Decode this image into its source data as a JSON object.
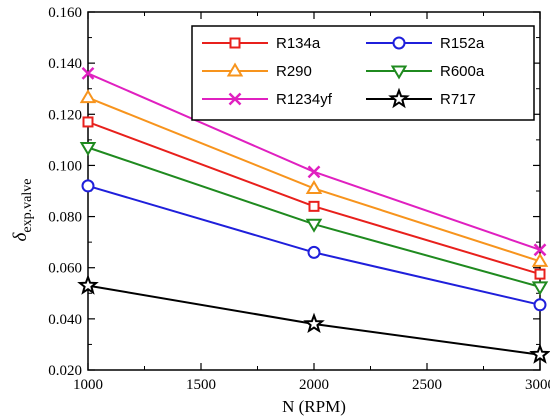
{
  "chart_data": {
    "type": "line",
    "title": "",
    "xlabel": "N (RPM)",
    "ylabel_main": "δ",
    "ylabel_sub": "exp.valve",
    "x": [
      1000,
      2000,
      3000
    ],
    "xlim": [
      1000,
      3000
    ],
    "ylim": [
      0.02,
      0.16
    ],
    "xticks": [
      "1000",
      "1500",
      "2000",
      "2500",
      "3000"
    ],
    "yticks": [
      "0.020",
      "0.040",
      "0.060",
      "0.080",
      "0.100",
      "0.120",
      "0.140",
      "0.160"
    ],
    "grid": false,
    "legend_position": "top-right",
    "series": [
      {
        "name": "R134a",
        "color": "#e8201c",
        "marker": "square",
        "values": [
          0.117,
          0.084,
          0.0575
        ]
      },
      {
        "name": "R152a",
        "color": "#1f1fdb",
        "marker": "circle",
        "values": [
          0.092,
          0.066,
          0.0455
        ]
      },
      {
        "name": "R290",
        "color": "#f7941d",
        "marker": "triangle-up",
        "values": [
          0.1265,
          0.091,
          0.0625
        ]
      },
      {
        "name": "R600a",
        "color": "#1f8a1f",
        "marker": "triangle-down",
        "values": [
          0.107,
          0.077,
          0.0525
        ]
      },
      {
        "name": "R1234yf",
        "color": "#e020c0",
        "marker": "x",
        "values": [
          0.136,
          0.0975,
          0.067
        ]
      },
      {
        "name": "R717",
        "color": "#000000",
        "marker": "star",
        "values": [
          0.053,
          0.038,
          0.026
        ]
      }
    ]
  }
}
